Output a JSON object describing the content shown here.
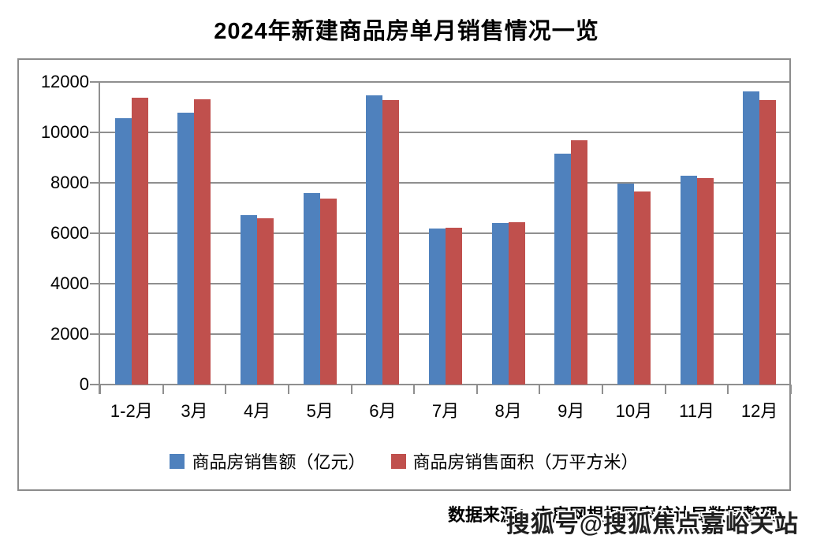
{
  "chart_data": {
    "type": "bar",
    "title": "2024年新建商品房单月销售情况一览",
    "categories": [
      "1-2月",
      "3月",
      "4月",
      "5月",
      "6月",
      "7月",
      "8月",
      "9月",
      "10月",
      "11月",
      "12月"
    ],
    "series": [
      {
        "name": "商品房销售额（亿元）",
        "color": "#4F81BD",
        "values": [
          10566,
          10789,
          6712,
          7598,
          11468,
          6197,
          6393,
          9157,
          7975,
          8270,
          11625
        ]
      },
      {
        "name": "商品房销售面积（万平方米）",
        "color": "#C0504D",
        "values": [
          11369,
          11299,
          6584,
          7390,
          11274,
          6233,
          6453,
          9682,
          7646,
          8188,
          11267
        ]
      }
    ],
    "xlabel": "",
    "ylabel": "",
    "ylim": [
      0,
      12000
    ],
    "y_step": 2000,
    "y_ticks": [
      "0",
      "2000",
      "4000",
      "6000",
      "8000",
      "10000",
      "12000"
    ],
    "grid": true,
    "legend_position": "bottom",
    "gridline_color": "#8f8f8f",
    "frame_color": "#8c8c8c"
  },
  "footer": {
    "source_text": "数据来源：中房网根据国家统计局数据整理",
    "watermark_text": "搜狐号@搜狐焦点嘉峪关站"
  }
}
